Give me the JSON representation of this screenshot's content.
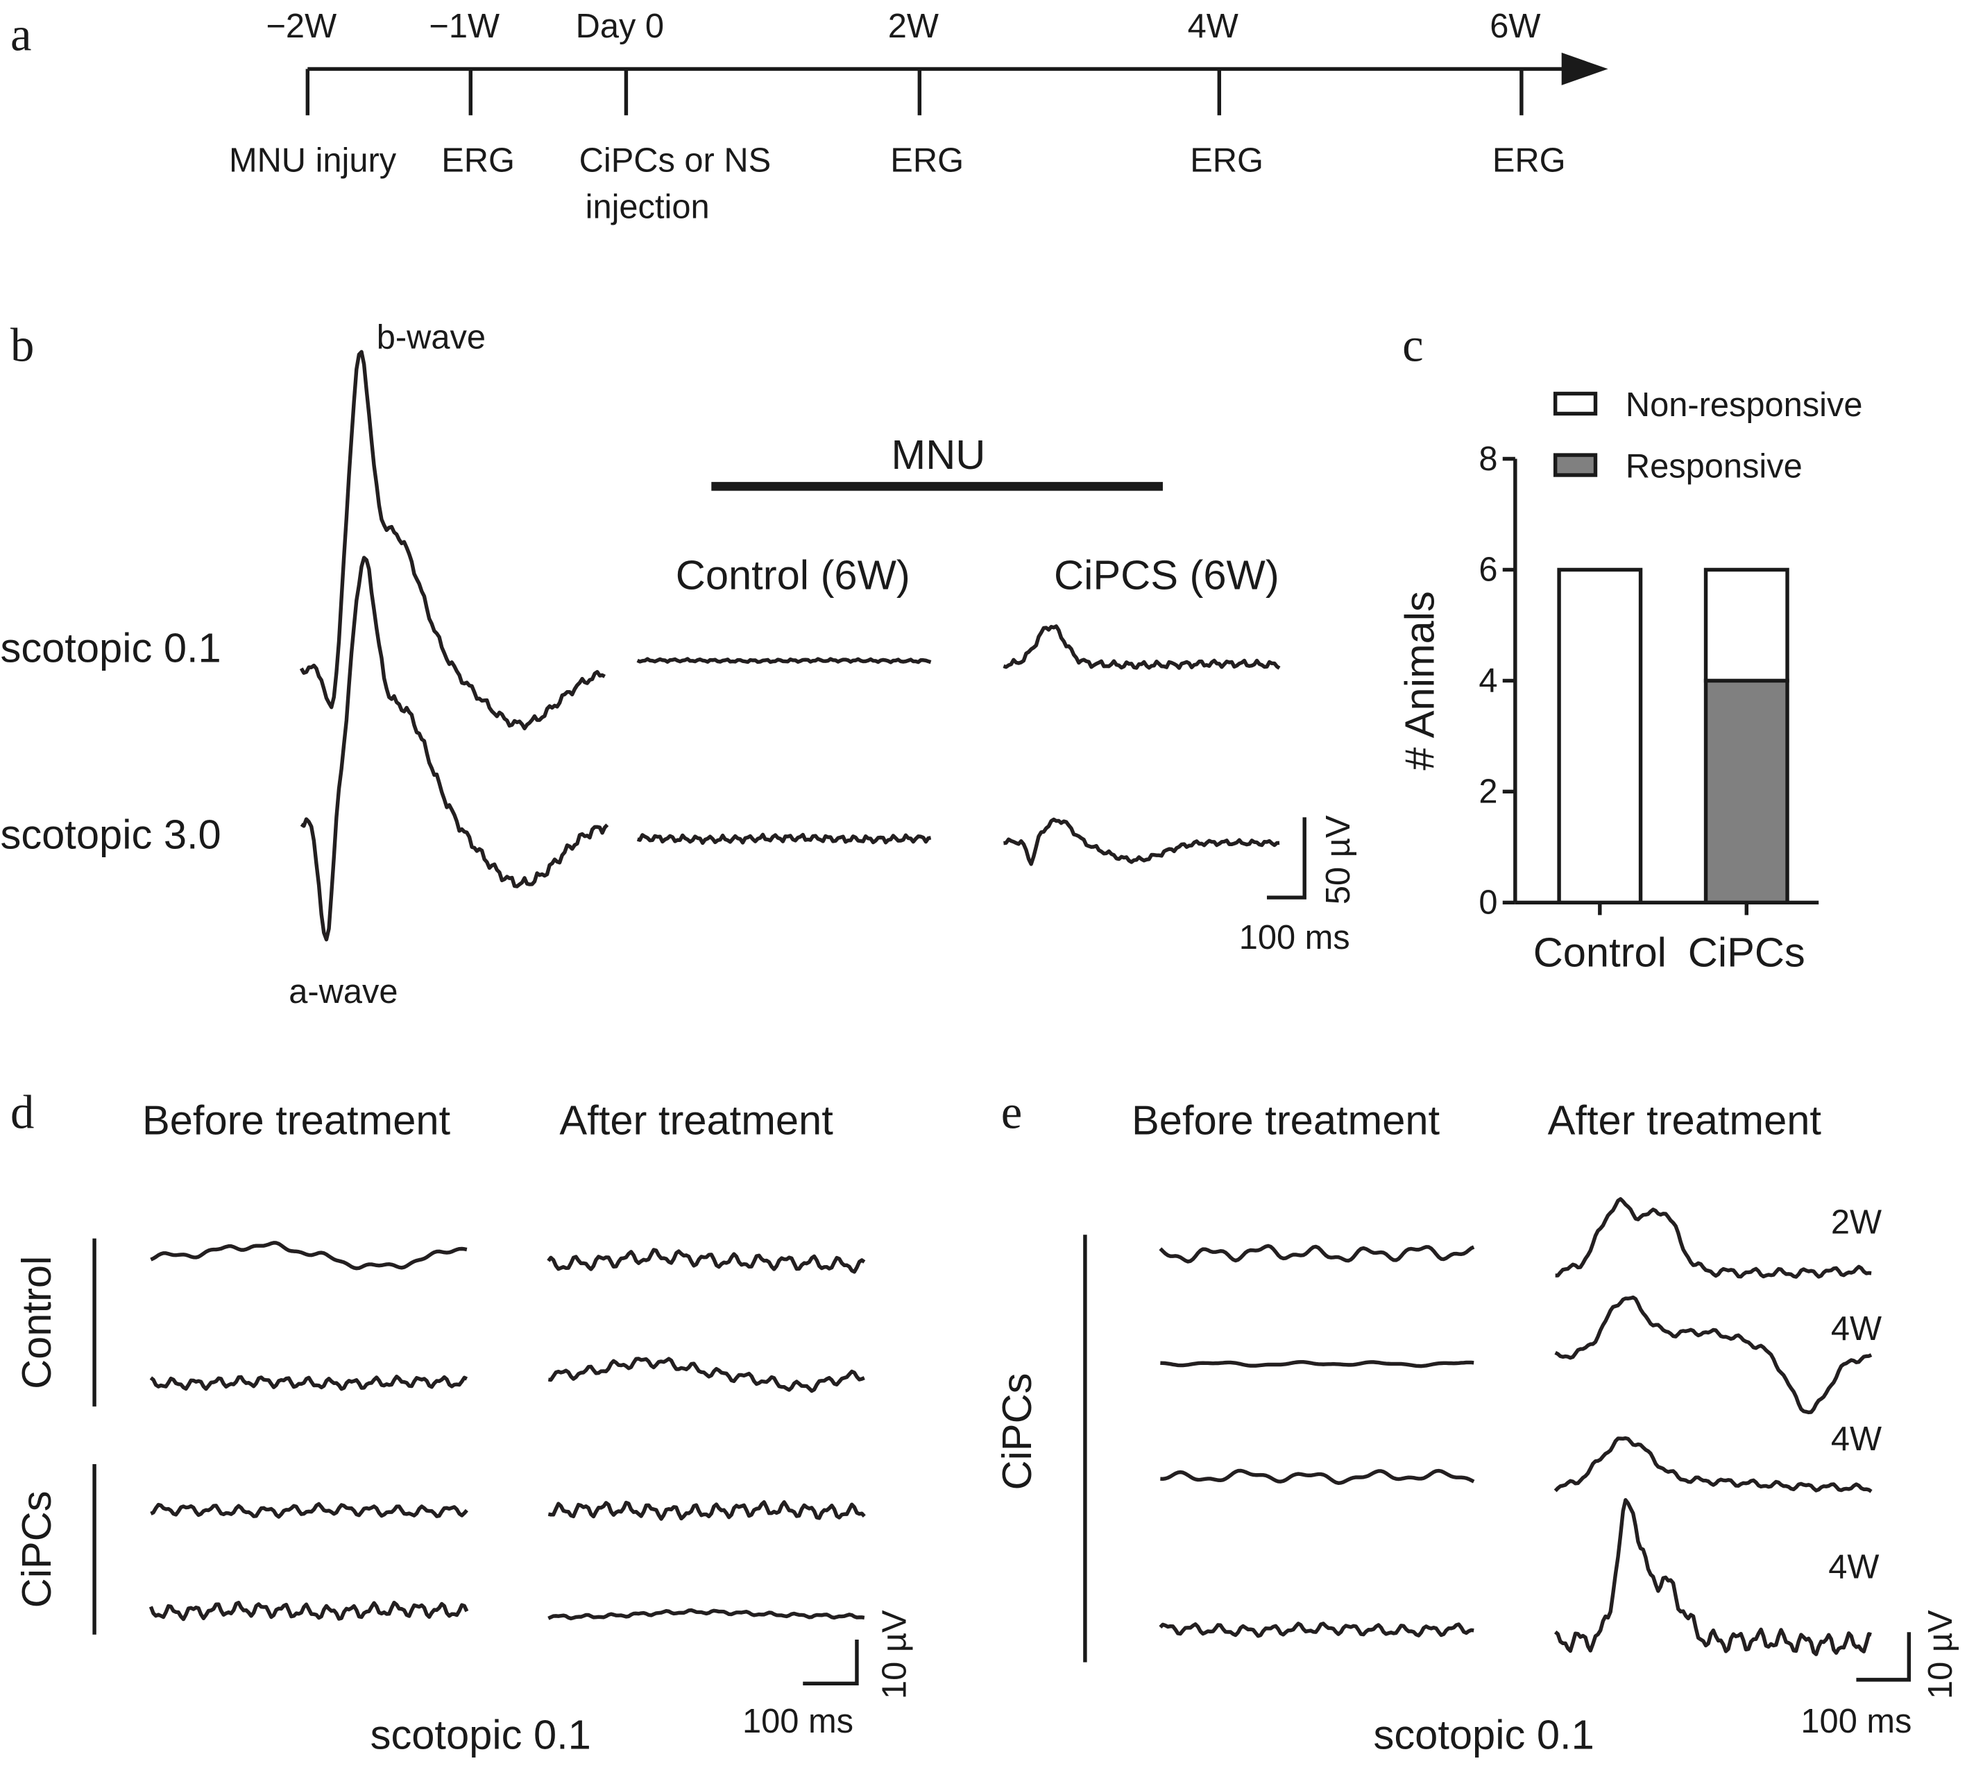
{
  "panels": {
    "a": "a",
    "b": "b",
    "c": "c",
    "d": "d",
    "e": "e"
  },
  "timeline": {
    "ticks": [
      "−2W",
      "−1W",
      "Day 0",
      "2W",
      "4W",
      "6W"
    ],
    "events": [
      "MNU injury",
      "ERG",
      "CiPCs or NS",
      "ERG",
      "ERG",
      "ERG"
    ],
    "event_line2": "injection"
  },
  "panel_b": {
    "b_wave": "b-wave",
    "a_wave": "a-wave",
    "group": "MNU",
    "col1": "Control (6W)",
    "col2": "CiPCS (6W)",
    "row1": "scotopic 0.1",
    "row2": "scotopic 3.0",
    "scale_y": "50 µV",
    "scale_x": "100 ms"
  },
  "chart_data": {
    "type": "stacked_bar",
    "ylabel": "# Animals",
    "categories": [
      "Control",
      "CiPCs"
    ],
    "series": [
      {
        "name": "Responsive",
        "color": "#808080",
        "values": [
          0,
          4
        ]
      },
      {
        "name": "Non-responsive",
        "color": "#ffffff",
        "values": [
          6,
          2
        ]
      }
    ],
    "ylim": [
      0,
      8
    ],
    "yticks": [
      0,
      2,
      4,
      6,
      8
    ]
  },
  "panel_d": {
    "before": "Before treatment",
    "after": "After treatment",
    "group1": "Control",
    "group2": "CiPCs",
    "scale_y": "10 µV",
    "scale_x": "100 ms",
    "caption": "scotopic 0.1"
  },
  "panel_e": {
    "before": "Before treatment",
    "after": "After treatment",
    "group": "CiPCs",
    "times": [
      "2W",
      "4W",
      "4W",
      "4W"
    ],
    "scale_y": "10 µV",
    "scale_x": "100 ms",
    "caption": "scotopic 0.1"
  }
}
